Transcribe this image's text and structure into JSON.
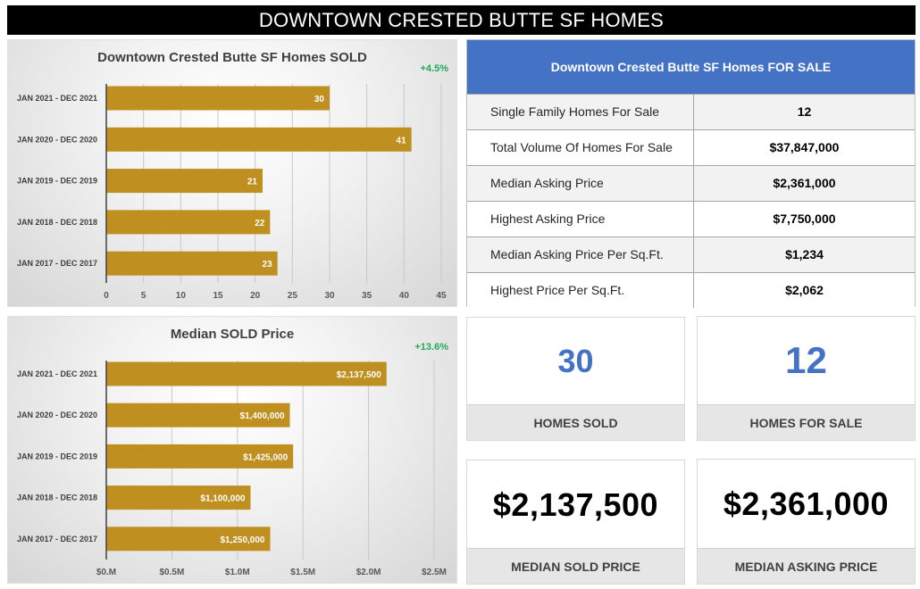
{
  "header": {
    "title": "DOWNTOWN CRESTED BUTTE SF HOMES"
  },
  "chart_data": [
    {
      "type": "bar",
      "orientation": "horizontal",
      "title": "Downtown Crested Butte SF Homes SOLD",
      "change_label": "+4.5%",
      "categories": [
        "JAN 2021 - DEC 2021",
        "JAN 2020 - DEC 2020",
        "JAN 2019 - DEC 2019",
        "JAN 2018 - DEC 2018",
        "JAN 2017 - DEC 2017"
      ],
      "values": [
        30,
        41,
        21,
        22,
        23
      ],
      "value_labels": [
        "30",
        "41",
        "21",
        "22",
        "23"
      ],
      "xlim": [
        0,
        45
      ],
      "xticks": [
        0,
        5,
        10,
        15,
        20,
        25,
        30,
        35,
        40,
        45
      ],
      "xtick_labels": [
        "0",
        "5",
        "10",
        "15",
        "20",
        "25",
        "30",
        "35",
        "40",
        "45"
      ],
      "xlabel": "",
      "ylabel": "",
      "grid": true,
      "bar_color": "#bf8f20"
    },
    {
      "type": "bar",
      "orientation": "horizontal",
      "title": "Median SOLD Price",
      "change_label": "+13.6%",
      "categories": [
        "JAN 2021 - DEC 2021",
        "JAN 2020 - DEC 2020",
        "JAN 2019 - DEC 2019",
        "JAN 2018 - DEC 2018",
        "JAN 2017 - DEC 2017"
      ],
      "values": [
        2137500,
        1400000,
        1425000,
        1100000,
        1250000
      ],
      "value_labels": [
        "$2,137,500",
        "$1,400,000",
        "$1,425,000",
        "$1,100,000",
        "$1,250,000"
      ],
      "xlim": [
        0,
        2500000
      ],
      "xticks": [
        0,
        500000,
        1000000,
        1500000,
        2000000,
        2500000
      ],
      "xtick_labels": [
        "$0.M",
        "$0.5M",
        "$1.0M",
        "$1.5M",
        "$2.0M",
        "$2.5M"
      ],
      "xlabel": "",
      "ylabel": "",
      "grid": true,
      "bar_color": "#bf8f20"
    }
  ],
  "for_sale_table": {
    "title": "Downtown Crested Butte SF Homes FOR SALE",
    "rows": [
      {
        "label": "Single Family Homes For Sale",
        "value": "12"
      },
      {
        "label": "Total Volume Of Homes For Sale",
        "value": "$37,847,000"
      },
      {
        "label": "Median Asking Price",
        "value": "$2,361,000"
      },
      {
        "label": "Highest Asking Price",
        "value": "$7,750,000"
      },
      {
        "label": "Median Asking Price Per Sq.Ft.",
        "value": "$1,234"
      },
      {
        "label": "Highest Price Per Sq.Ft.",
        "value": "$2,062"
      }
    ]
  },
  "cards": {
    "homes_sold": {
      "value": "30",
      "label": "HOMES SOLD"
    },
    "homes_for_sale": {
      "value": "12",
      "label": "HOMES FOR SALE"
    },
    "median_sold_price": {
      "value": "$2,137,500",
      "label": "MEDIAN SOLD PRICE"
    },
    "median_asking_price": {
      "value": "$2,361,000",
      "label": "MEDIAN ASKING PRICE"
    }
  },
  "colors": {
    "bar": "#bf8f20",
    "table_header": "#4472c4",
    "kpi_blue": "#4472c4",
    "change_positive": "#22a95a"
  }
}
